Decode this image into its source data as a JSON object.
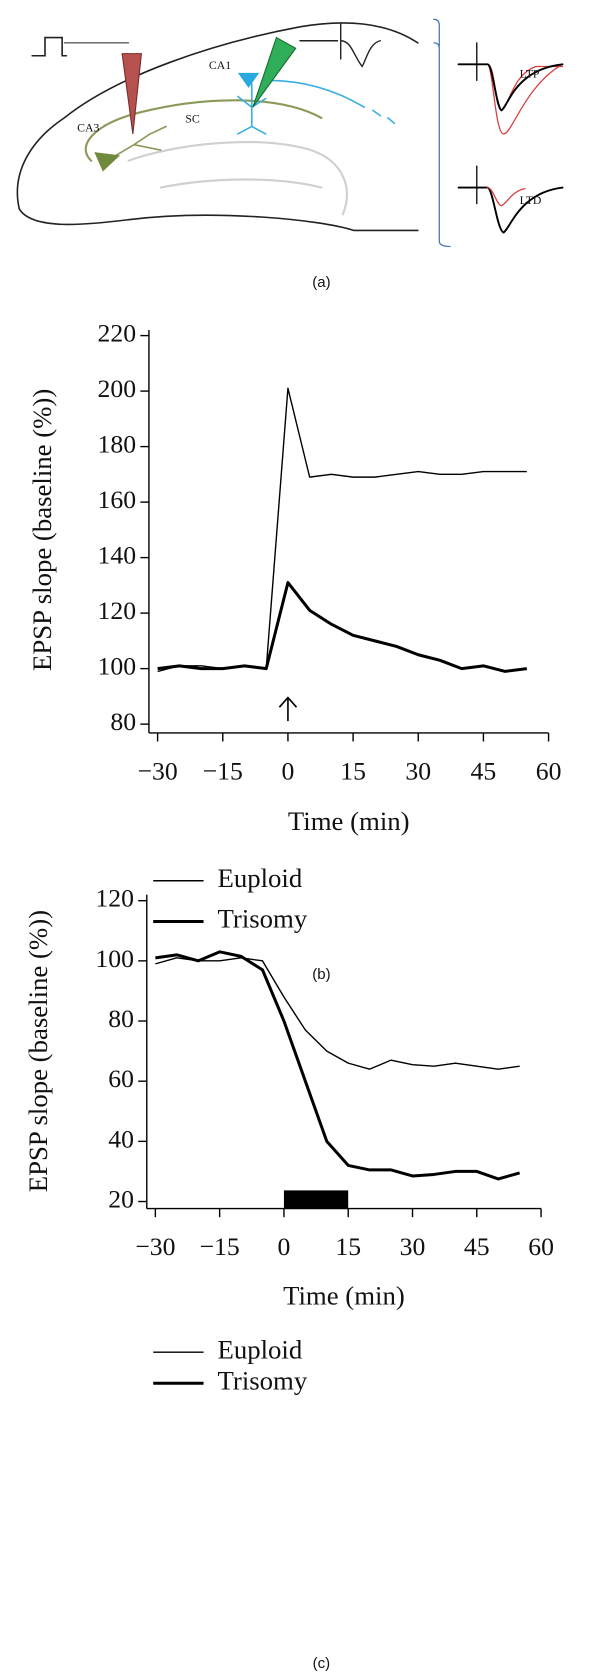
{
  "diagram": {
    "ca1": "CA1",
    "ca3": "CA3",
    "sc": "SC",
    "ltp": "LTP",
    "ltd": "LTD",
    "caption": "(a)"
  },
  "chart_data": [
    {
      "type": "line",
      "caption": "(b)",
      "y_label": "EPSP slope (baseline (%))",
      "x_label": "Time (min)",
      "x": [
        -30,
        -25,
        -20,
        -15,
        -10,
        -5,
        0,
        5,
        10,
        15,
        20,
        25,
        30,
        35,
        40,
        45,
        50,
        55
      ],
      "series": [
        {
          "name": "Euploid",
          "color": "#000000",
          "width": 1.3,
          "values": [
            99,
            101,
            101,
            100,
            101,
            100,
            201,
            169,
            170,
            169,
            169,
            170,
            171,
            170,
            170,
            171,
            171,
            171
          ]
        },
        {
          "name": "Trisomy",
          "color": "#000000",
          "width": 2.8,
          "values": [
            100,
            101,
            100,
            100,
            101,
            100,
            131,
            121,
            116,
            112,
            110,
            108,
            105,
            103,
            100,
            101,
            99,
            100
          ]
        }
      ],
      "xlim": [
        -32,
        60
      ],
      "xticks": [
        {
          "value": -30,
          "label": "−30"
        },
        {
          "value": -15,
          "label": "−15"
        },
        0,
        15,
        30,
        45,
        60
      ],
      "ylim": [
        78,
        222
      ],
      "yticks": [
        80,
        100,
        120,
        140,
        160,
        180,
        200,
        220
      ],
      "arrow_x": 0
    },
    {
      "type": "line",
      "caption": "(c)",
      "y_label": "EPSP slope (baseline (%))",
      "x_label": "Time (min)",
      "x": [
        -30,
        -25,
        -20,
        -15,
        -10,
        -5,
        0,
        5,
        10,
        15,
        20,
        25,
        30,
        35,
        40,
        45,
        50,
        55
      ],
      "series": [
        {
          "name": "Euploid",
          "color": "#000000",
          "width": 1.3,
          "values": [
            99,
            101,
            100,
            100,
            101,
            100,
            88,
            77,
            70,
            66,
            64,
            67,
            65.5,
            65,
            66,
            65,
            64,
            65
          ]
        },
        {
          "name": "Trisomy",
          "color": "#000000",
          "width": 2.8,
          "values": [
            101,
            102,
            100,
            103,
            101.5,
            97,
            80,
            60,
            40,
            32,
            30.5,
            30.5,
            28.5,
            29,
            30,
            30,
            27.5,
            29.5
          ]
        }
      ],
      "xlim": [
        -32,
        60
      ],
      "xticks": [
        {
          "value": -30,
          "label": "−30"
        },
        {
          "value": -15,
          "label": "−15"
        },
        0,
        15,
        30,
        45,
        60
      ],
      "ylim": [
        18,
        122
      ],
      "yticks": [
        20,
        40,
        60,
        80,
        100,
        120
      ],
      "bar_x": [
        0,
        15
      ]
    }
  ]
}
